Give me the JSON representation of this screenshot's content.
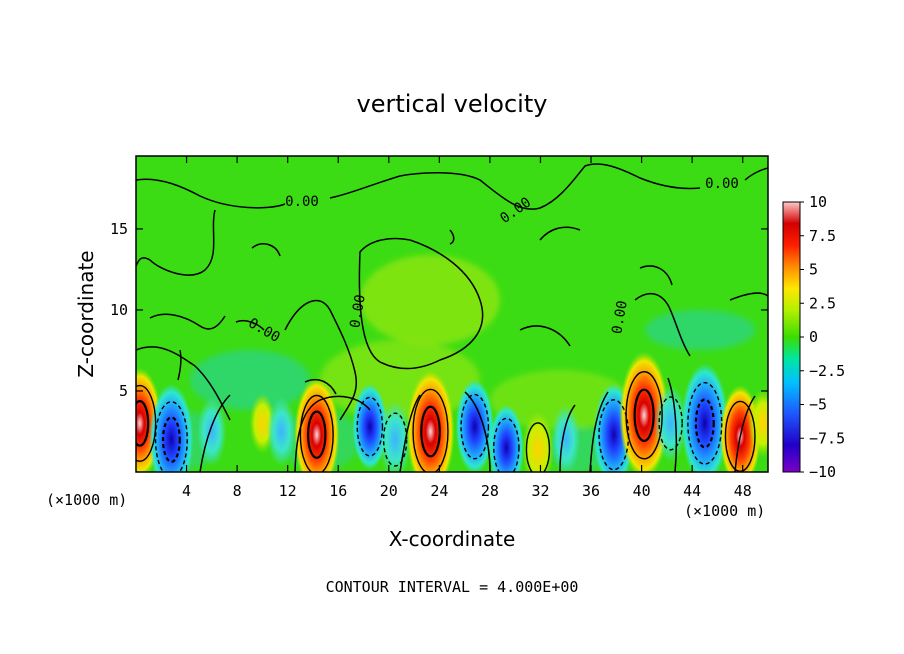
{
  "chart_data": {
    "type": "heatmap",
    "title": "vertical velocity",
    "xlabel": "X-coordinate",
    "ylabel": "Z-coordinate",
    "x_unit_label": "(×1000 m)",
    "xlim": [
      0,
      50
    ],
    "ylim": [
      0,
      19.5
    ],
    "x_ticks": [
      4,
      8,
      12,
      16,
      20,
      24,
      28,
      32,
      36,
      40,
      44,
      48
    ],
    "y_ticks": [
      5,
      10,
      15
    ],
    "colorbar": {
      "ticks": [
        10,
        7.5,
        5,
        2.5,
        0,
        -2.5,
        -5,
        -7.5,
        -10
      ],
      "tick_labels": [
        "10",
        "7.5",
        "5",
        "2.5",
        "0",
        "−2.5",
        "−5",
        "−7.5",
        "−10"
      ],
      "range": [
        -10,
        10
      ],
      "colors": [
        "#7a00c8",
        "#2000c8",
        "#1e5aff",
        "#00c0ff",
        "#00e6a0",
        "#3cdc00",
        "#b4f000",
        "#ffe600",
        "#ff8c00",
        "#ff1e00",
        "#d20000",
        "#ffc8c8"
      ]
    },
    "contour_interval_text": "CONTOUR INTERVAL = 4.000E+00",
    "contour_labels": [
      "0.00",
      "0.00",
      "0.00",
      "0.00",
      "0.00",
      "0.00"
    ],
    "cells": [
      {
        "x": 0.3,
        "z": 3.0,
        "w": 8
      },
      {
        "x": 2.8,
        "z": 2.0,
        "w": -8
      },
      {
        "x": 6.0,
        "z": 2.5,
        "w": -3
      },
      {
        "x": 10.0,
        "z": 3.0,
        "w": 2
      },
      {
        "x": 11.5,
        "z": 2.5,
        "w": -3
      },
      {
        "x": 14.3,
        "z": 2.3,
        "w": 8.5
      },
      {
        "x": 18.5,
        "z": 2.8,
        "w": -5
      },
      {
        "x": 20.5,
        "z": 2.0,
        "w": -4
      },
      {
        "x": 23.3,
        "z": 2.5,
        "w": 9.5
      },
      {
        "x": 26.8,
        "z": 2.8,
        "w": -6
      },
      {
        "x": 29.3,
        "z": 1.5,
        "w": -5
      },
      {
        "x": 31.8,
        "z": 1.4,
        "w": 4
      },
      {
        "x": 34.0,
        "z": 2.0,
        "w": -3
      },
      {
        "x": 37.8,
        "z": 2.3,
        "w": -7
      },
      {
        "x": 40.2,
        "z": 3.5,
        "w": 10
      },
      {
        "x": 42.3,
        "z": 3.0,
        "w": -4
      },
      {
        "x": 45.0,
        "z": 3.0,
        "w": -9
      },
      {
        "x": 47.8,
        "z": 2.2,
        "w": 7
      },
      {
        "x": 49.6,
        "z": 3.0,
        "w": 3
      }
    ]
  }
}
